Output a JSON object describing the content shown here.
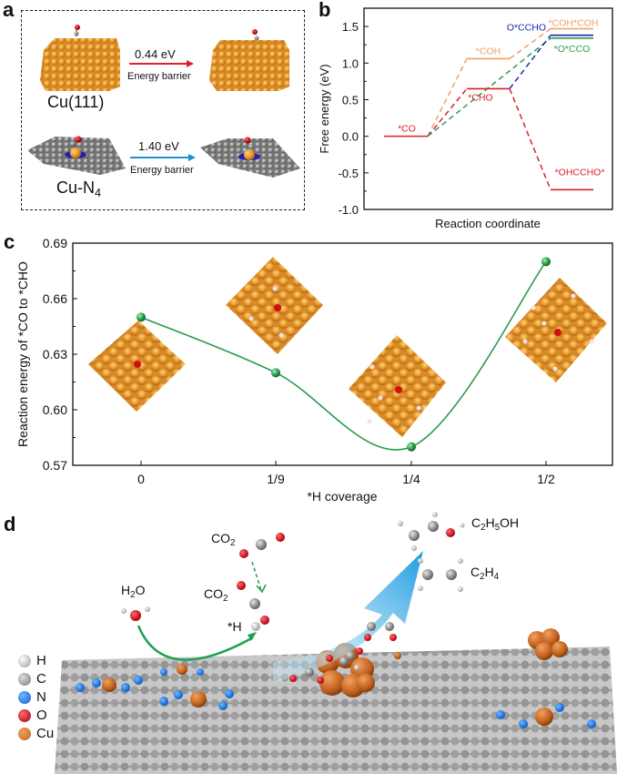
{
  "panels": {
    "a": {
      "letter": "a",
      "rows": [
        {
          "catalyst": "Cu(111)",
          "barrier": "0.44 eV",
          "barrier_label": "Energy barrier",
          "arrow_color": "#e0202a"
        },
        {
          "catalyst_main": "Cu-N",
          "catalyst_sub": "4",
          "barrier": "1.40 eV",
          "barrier_label": "Energy barrier",
          "arrow_color": "#1b8fd0"
        }
      ]
    },
    "b": {
      "letter": "b"
    },
    "c": {
      "letter": "c"
    },
    "d": {
      "letter": "d",
      "labels": {
        "co2_top": "CO",
        "co2_top_sub": "2",
        "co2_mid": "CO",
        "co2_mid_sub": "2",
        "h2o_pre": "H",
        "h2o_sub": "2",
        "h2o_post": "O",
        "h_star": "*H",
        "ethanol_pre": "C",
        "ethanol_sub1": "2",
        "ethanol_mid": "H",
        "ethanol_sub2": "5",
        "ethanol_post": "OH",
        "ethylene_pre": "C",
        "ethylene_sub1": "2",
        "ethylene_mid": "H",
        "ethylene_sub2": "4"
      },
      "legend": [
        {
          "label": "H",
          "color": "#e8e8e8"
        },
        {
          "label": "C",
          "color": "#9a9a9a"
        },
        {
          "label": "N",
          "color": "#1e7ee0"
        },
        {
          "label": "O",
          "color": "#c0161e"
        },
        {
          "label": "Cu",
          "color": "#e0782a"
        }
      ]
    }
  },
  "chart_data": [
    {
      "type": "line",
      "panel": "b",
      "title": "",
      "xlabel": "Reaction coordinate",
      "ylabel": "Free energy (eV)",
      "ylim": [
        -1.0,
        1.75
      ],
      "yticks": [
        "-1.0",
        "-0.5",
        "0.0",
        "0.5",
        "1.0",
        "1.5"
      ],
      "ytick_values": [
        -1.0,
        -0.5,
        0.0,
        0.5,
        1.0,
        1.5
      ],
      "grid": false,
      "steps": [
        0,
        1,
        2
      ],
      "levels": [
        {
          "name": "*CO",
          "step": 0,
          "value": 0.0,
          "color": "#d8232a",
          "label_pos": "above"
        },
        {
          "name": "*COH",
          "step": 1,
          "value": 1.06,
          "color": "#f0a060",
          "label_pos": "above"
        },
        {
          "name": "*CHO",
          "step": 1,
          "value": 0.65,
          "color": "#d8232a",
          "label_pos": "below"
        },
        {
          "name": "*COH*COH",
          "step": 2,
          "value": 1.47,
          "color": "#f0a060",
          "label_pos": "above"
        },
        {
          "name": "O*CCHO",
          "step": 2,
          "value": 1.38,
          "color": "#1a2ab0",
          "label_pos": "left"
        },
        {
          "name": "*O*CCO",
          "step": 2,
          "value": 1.34,
          "color": "#2e9a4a",
          "label_pos": "below"
        },
        {
          "name": "*OHCCHO*",
          "step": 2,
          "value": -0.73,
          "color": "#d8232a",
          "label_pos": "above"
        }
      ],
      "connectors": [
        {
          "from": "*CO",
          "to": "*COH",
          "color": "#f0a060"
        },
        {
          "from": "*CO",
          "to": "*CHO",
          "color": "#d8232a"
        },
        {
          "from": "*CO",
          "to": "*O*CCO",
          "color": "#2e9a4a"
        },
        {
          "from": "*COH",
          "to": "*COH*COH",
          "color": "#f0a060"
        },
        {
          "from": "*CHO",
          "to": "O*CCHO",
          "color": "#1a2ab0"
        },
        {
          "from": "*CHO",
          "to": "*OHCCHO*",
          "color": "#d8232a"
        }
      ]
    },
    {
      "type": "line",
      "panel": "c",
      "title": "",
      "xlabel": "*H coverage",
      "ylabel": "Reaction energy of *CO to *CHO",
      "ylim": [
        0.57,
        0.69
      ],
      "yticks": [
        "0.57",
        "0.60",
        "0.63",
        "0.66",
        "0.69"
      ],
      "ytick_values": [
        0.57,
        0.6,
        0.63,
        0.66,
        0.69
      ],
      "categories": [
        "0",
        "1/9",
        "1/4",
        "1/2"
      ],
      "series": [
        {
          "name": "reaction energy",
          "values": [
            0.65,
            0.62,
            0.58,
            0.68
          ],
          "color": "#2a9a4e"
        }
      ],
      "grid": false
    }
  ]
}
